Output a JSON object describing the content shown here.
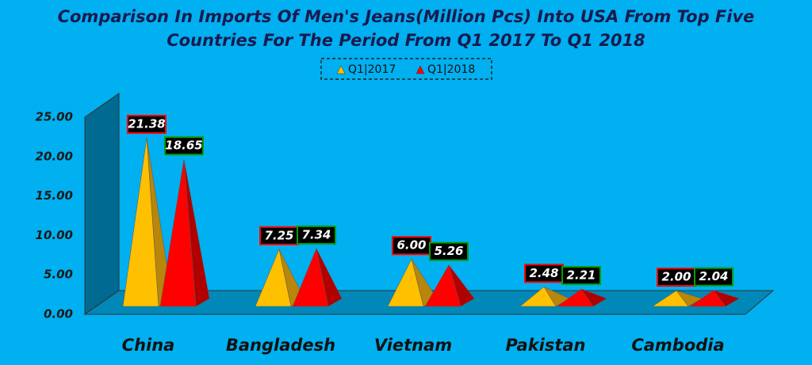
{
  "chart_data": {
    "type": "pyramid",
    "title": [
      "Comparison In Imports Of Men's Jeans(Million Pcs) Into USA From Top Five",
      "Countries For The Period From Q1 2017 To Q1 2018"
    ],
    "categories": [
      "China",
      "Bangladesh",
      "Vietnam",
      "Pakistan",
      "Cambodia"
    ],
    "series": [
      {
        "name": "Q1|2017",
        "color": "#FFC000",
        "values": [
          21.38,
          7.25,
          6,
          2.48,
          2
        ],
        "value_labels": [
          "21.38",
          "7.25",
          "6.00",
          "2.48",
          "2.00"
        ]
      },
      {
        "name": "Q1|2018",
        "color": "#FF0000",
        "values": [
          18.65,
          7.34,
          5.26,
          2.21,
          2.04
        ],
        "value_labels": [
          "18.65",
          "7.34",
          "5.26",
          "2.21",
          "2.04"
        ]
      }
    ],
    "ylim": [
      0,
      25
    ],
    "yticks": [
      {
        "value": 0,
        "label": "0.00"
      },
      {
        "value": 5,
        "label": "5.00"
      },
      {
        "value": 10,
        "label": "10.00"
      },
      {
        "value": 15,
        "label": "15.00"
      },
      {
        "value": 20,
        "label": "20.00"
      },
      {
        "value": 25,
        "label": "25.00"
      }
    ],
    "legend": "top"
  }
}
